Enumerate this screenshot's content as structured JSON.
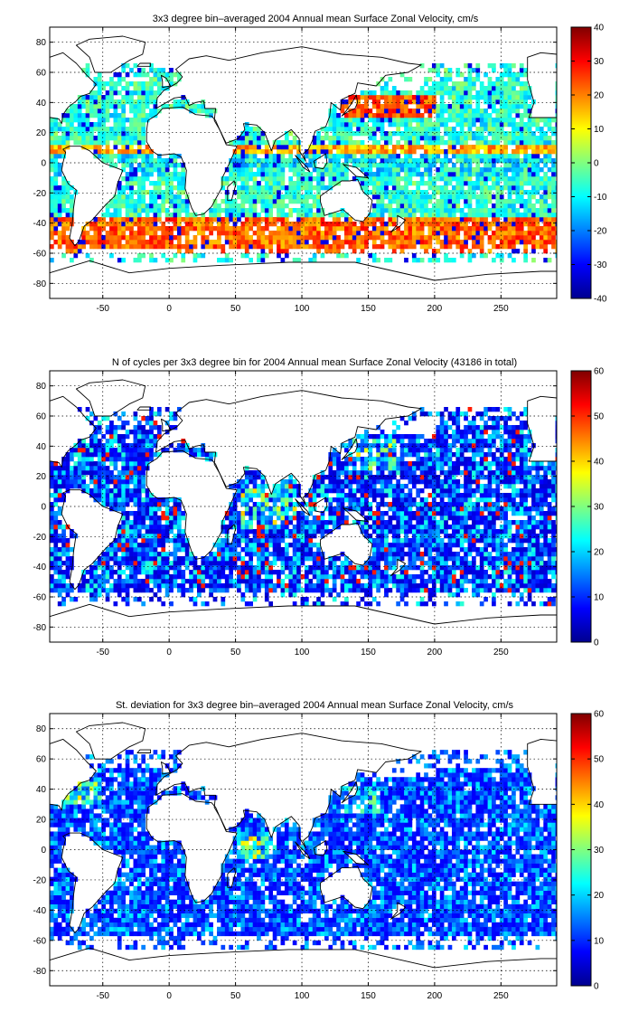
{
  "chart_data": [
    {
      "type": "heatmap",
      "title": "3x3 degree bin–averaged 2004 Annual mean Surface Zonal Velocity, cm/s",
      "xlim": [
        -90,
        292
      ],
      "ylim": [
        -90,
        90
      ],
      "x_ticks": [
        -50,
        0,
        50,
        100,
        150,
        200,
        250
      ],
      "y_ticks": [
        80,
        60,
        40,
        20,
        0,
        -20,
        -40,
        -60,
        -80
      ],
      "grid": true,
      "colorbar": {
        "min": -40,
        "max": 40,
        "ticks": [
          40,
          30,
          20,
          10,
          0,
          -10,
          -20,
          -30,
          -40
        ],
        "colormap": "jet"
      },
      "bin_size_deg": 3
    },
    {
      "type": "heatmap",
      "title": "N of cycles per 3x3 degree bin for 2004 Annual mean Surface Zonal Velocity (43186 in total)",
      "xlim": [
        -90,
        292
      ],
      "ylim": [
        -90,
        90
      ],
      "x_ticks": [
        -50,
        0,
        50,
        100,
        150,
        200,
        250
      ],
      "y_ticks": [
        80,
        60,
        40,
        20,
        0,
        -20,
        -40,
        -60,
        -80
      ],
      "grid": true,
      "colorbar": {
        "min": 0,
        "max": 60,
        "ticks": [
          60,
          50,
          40,
          30,
          20,
          10,
          0
        ],
        "colormap": "jet"
      },
      "bin_size_deg": 3
    },
    {
      "type": "heatmap",
      "title": "St. deviation for 3x3 degree bin–averaged 2004 Annual mean Surface Zonal Velocity, cm/s",
      "xlim": [
        -90,
        292
      ],
      "ylim": [
        -90,
        90
      ],
      "x_ticks": [
        -50,
        0,
        50,
        100,
        150,
        200,
        250
      ],
      "y_ticks": [
        80,
        60,
        40,
        20,
        0,
        -20,
        -40,
        -60,
        -80
      ],
      "grid": true,
      "colorbar": {
        "min": 0,
        "max": 60,
        "ticks": [
          60,
          50,
          40,
          30,
          20,
          10,
          0
        ],
        "colormap": "jet"
      },
      "bin_size_deg": 3
    }
  ]
}
